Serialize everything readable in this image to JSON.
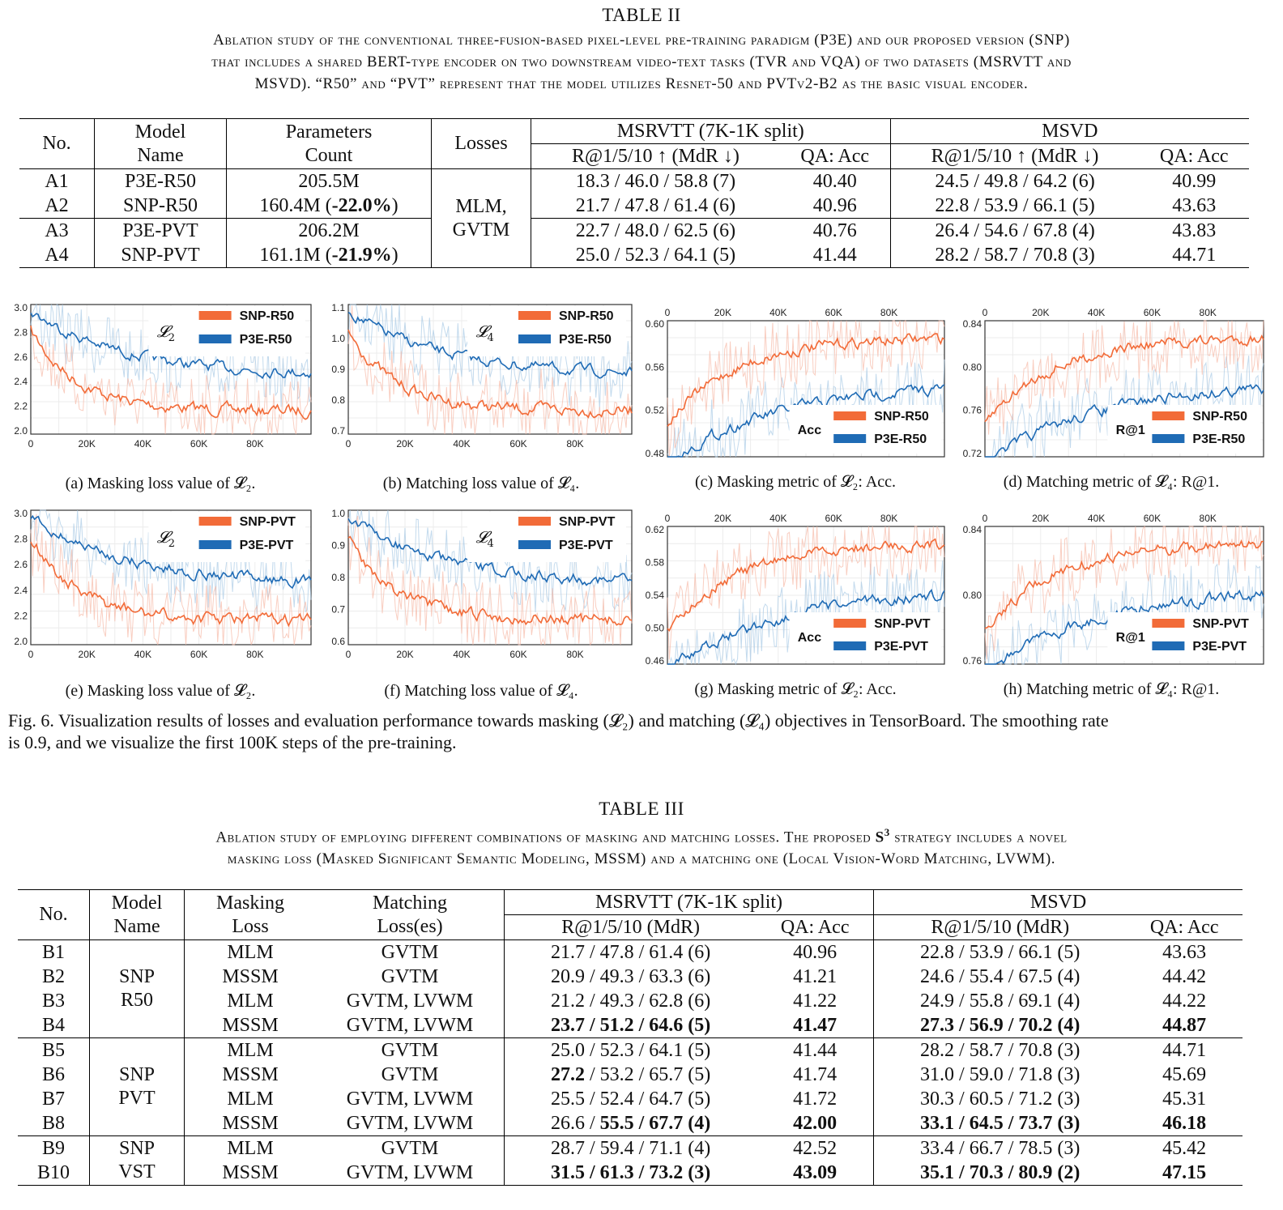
{
  "table2": {
    "title": "TABLE II",
    "desc_lines": [
      "Ablation study of the conventional three-fusion-based pixel-level pre-training paradigm (P3E) and our proposed version (SNP)",
      "that includes a shared BERT-type encoder on two downstream video-text tasks (TVR and VQA) of two datasets (MSRVTT and",
      "MSVD). “R50” and “PVT” represent that the model utilizes Resnet-50 and PVTv2-B2 as the basic visual encoder."
    ],
    "h_no": "No.",
    "h_model1": "Model",
    "h_model2": "Name",
    "h_param1": "Parameters",
    "h_param2": "Count",
    "h_losses": "Losses",
    "h_msrvtt": "MSRVTT (7K-1K split)",
    "h_msvd": "MSVD",
    "h_r": "R@1/5/10 ↑ (MdR ↓)",
    "h_qa": "QA: Acc",
    "losses_1": "MLM,",
    "losses_2": "GVTM",
    "rows": [
      {
        "no": "A1",
        "model": "P3E-R50",
        "param": "205.5M",
        "param_b": "",
        "param_e": "",
        "msr_r": "18.3 / 46.0 / 58.8 (7)",
        "msr_qa": "40.40",
        "msvd_r": "24.5 / 49.8 / 64.2 (6)",
        "msvd_qa": "40.99"
      },
      {
        "no": "A2",
        "model": "SNP-R50",
        "param": "160.4M (",
        "param_b": "-22.0%",
        "param_e": ")",
        "msr_r": "21.7 / 47.8 / 61.4 (6)",
        "msr_qa": "40.96",
        "msvd_r": "22.8 / 53.9 / 66.1 (5)",
        "msvd_qa": "43.63"
      },
      {
        "no": "A3",
        "model": "P3E-PVT",
        "param": "206.2M",
        "param_b": "",
        "param_e": "",
        "msr_r": "22.7 / 48.0 / 62.5 (6)",
        "msr_qa": "40.76",
        "msvd_r": "26.4 / 54.6 / 67.8 (4)",
        "msvd_qa": "43.83"
      },
      {
        "no": "A4",
        "model": "SNP-PVT",
        "param": "161.1M (",
        "param_b": "-21.9%",
        "param_e": ")",
        "msr_r": "25.0 / 52.3 / 64.1 (5)",
        "msr_qa": "41.44",
        "msvd_r": "28.2 / 58.7 / 70.8 (3)",
        "msvd_qa": "44.71"
      }
    ]
  },
  "figure": {
    "panels": [
      {
        "caption": "(a) Masking loss value of 𝓛₂.",
        "legend": [
          "SNP-R50",
          "P3E-R50"
        ],
        "symbol_a": "𝓛",
        "symbol_b": "2",
        "yticks": [
          "3.0",
          "2.8",
          "2.6",
          "2.4",
          "2.2",
          "2.0"
        ],
        "xticks": [
          "0",
          "20K",
          "40K",
          "60K",
          "80K"
        ],
        "xaxis": "bottom"
      },
      {
        "caption": "(b) Matching loss value of 𝓛₄.",
        "legend": [
          "SNP-R50",
          "P3E-R50"
        ],
        "symbol_a": "𝓛",
        "symbol_b": "4",
        "yticks": [
          "1.1",
          "1.0",
          "0.9",
          "0.8",
          "0.7"
        ],
        "xticks": [
          "0",
          "20K",
          "40K",
          "60K",
          "80K"
        ],
        "xaxis": "bottom"
      },
      {
        "caption": "(c) Masking metric of 𝓛₂: Acc.",
        "legend": [
          "SNP-R50",
          "P3E-R50"
        ],
        "metric": "Acc",
        "yticks": [
          "0.60",
          "0.56",
          "0.52",
          "0.48"
        ],
        "xticks": [
          "0",
          "20K",
          "40K",
          "60K",
          "80K"
        ],
        "xaxis": "top"
      },
      {
        "caption": "(d) Matching metric of 𝓛₄: R@1.",
        "legend": [
          "SNP-R50",
          "P3E-R50"
        ],
        "metric": "R@1",
        "yticks": [
          "0.84",
          "0.80",
          "0.76",
          "0.72"
        ],
        "xticks": [
          "0",
          "20K",
          "40K",
          "60K",
          "80K"
        ],
        "xaxis": "top"
      },
      {
        "caption": "(e) Masking loss value of 𝓛₂.",
        "legend": [
          "SNP-PVT",
          "P3E-PVT"
        ],
        "symbol_a": "𝓛",
        "symbol_b": "2",
        "yticks": [
          "3.0",
          "2.8",
          "2.6",
          "2.4",
          "2.2",
          "2.0"
        ],
        "xticks": [
          "0",
          "20K",
          "40K",
          "60K",
          "80K"
        ],
        "xaxis": "bottom"
      },
      {
        "caption": "(f) Matching loss value of 𝓛₄.",
        "legend": [
          "SNP-PVT",
          "P3E-PVT"
        ],
        "symbol_a": "𝓛",
        "symbol_b": "4",
        "yticks": [
          "1.0",
          "0.9",
          "0.8",
          "0.7",
          "0.6"
        ],
        "xticks": [
          "0",
          "20K",
          "40K",
          "60K",
          "80K"
        ],
        "xaxis": "bottom"
      },
      {
        "caption": "(g) Masking metric of 𝓛₂: Acc.",
        "legend": [
          "SNP-PVT",
          "P3E-PVT"
        ],
        "metric": "Acc",
        "yticks": [
          "0.62",
          "0.58",
          "0.54",
          "0.50",
          "0.46"
        ],
        "xticks": [
          "0",
          "20K",
          "40K",
          "60K",
          "80K"
        ],
        "xaxis": "top"
      },
      {
        "caption": "(h) Matching metric of 𝓛₄: R@1.",
        "legend": [
          "SNP-PVT",
          "P3E-PVT"
        ],
        "metric": "R@1",
        "yticks": [
          "0.84",
          "0.80",
          "0.76"
        ],
        "xticks": [
          "0",
          "20K",
          "40K",
          "60K",
          "80K"
        ],
        "xaxis": "top"
      }
    ],
    "caption_lines": [
      "Fig. 6.  Visualization results of losses and evaluation performance towards masking (𝓛₂) and matching (𝓛₄) objectives in TensorBoard. The smoothing rate",
      "is 0.9, and we visualize the first 100K steps of the pre-training."
    ],
    "colors": {
      "snp": "#f26b38",
      "p3e": "#1f6bb5",
      "snp_light": "#f7b9a6",
      "p3e_light": "#a9cbe6"
    }
  },
  "table3": {
    "title": "TABLE III",
    "desc_line1_a": "Ablation study of employing different combinations of masking and matching losses. The proposed ",
    "desc_line1_b": "S",
    "desc_line1_c": "3",
    "desc_line1_d": " strategy includes a novel",
    "desc_line2": "masking loss (Masked Significant Semantic Modeling, MSSM) and a matching one (Local Vision-Word Matching, LVWM).",
    "h_no": "No.",
    "h_model1": "Model",
    "h_model2": "Name",
    "h_mask1": "Masking",
    "h_mask2": "Loss",
    "h_match1": "Matching",
    "h_match2": "Loss(es)",
    "h_msrvtt": "MSRVTT (7K-1K split)",
    "h_msvd": "MSVD",
    "h_r": "R@1/5/10 (MdR)",
    "h_qa": "QA: Acc",
    "group1": [
      "SNP",
      "R50"
    ],
    "group2": [
      "SNP",
      "PVT"
    ],
    "group3": [
      "SNP",
      "VST"
    ],
    "rows": [
      {
        "no": "B1",
        "mask": "MLM",
        "match": "GVTM",
        "msr_r": "21.7 / 47.8 / 61.4 (6)",
        "msr_qa": "40.96",
        "msvd_r": "22.8 / 53.9 / 66.1 (5)",
        "msvd_qa": "43.63"
      },
      {
        "no": "B2",
        "mask": "MSSM",
        "match": "GVTM",
        "msr_r": "20.9 / 49.3 / 63.3 (6)",
        "msr_qa": "41.21",
        "msvd_r": "24.6 / 55.4 / 67.5 (4)",
        "msvd_qa": "44.42"
      },
      {
        "no": "B3",
        "mask": "MLM",
        "match": "GVTM, LVWM",
        "msr_r": "21.2 / 49.3 / 62.8 (6)",
        "msr_qa": "41.22",
        "msvd_r": "24.9 / 55.8 / 69.1 (4)",
        "msvd_qa": "44.22"
      },
      {
        "no": "B4",
        "mask": "MSSM",
        "match": "GVTM, LVWM",
        "msr_r": "23.7 / 51.2 / 64.6 (5)",
        "msr_qa": "41.47",
        "msvd_r": "27.3 / 56.9 / 70.2 (4)",
        "msvd_qa": "44.87"
      },
      {
        "no": "B5",
        "mask": "MLM",
        "match": "GVTM",
        "msr_r": "25.0 / 52.3 / 64.1 (5)",
        "msr_qa": "41.44",
        "msvd_r": "28.2 / 58.7 / 70.8 (3)",
        "msvd_qa": "44.71"
      },
      {
        "no": "B6",
        "mask": "MSSM",
        "match": "GVTM",
        "msr_r_b": "27.2",
        "msr_r_rest": " / 53.2 / 65.7 (5)",
        "msr_qa": "41.74",
        "msvd_r": "31.0 / 59.0 / 71.8 (3)",
        "msvd_qa": "45.69"
      },
      {
        "no": "B7",
        "mask": "MLM",
        "match": "GVTM, LVWM",
        "msr_r": "25.5 / 52.4 / 64.7 (5)",
        "msr_qa": "41.72",
        "msvd_r": "30.3 / 60.5 / 71.2 (3)",
        "msvd_qa": "45.31"
      },
      {
        "no": "B8",
        "mask": "MSSM",
        "match": "GVTM, LVWM",
        "msr_r_pre": "26.6 / ",
        "msr_r_b": "55.5 / 67.7 (4)",
        "msr_qa": "42.00",
        "msvd_r": "33.1 / 64.5 / 73.7 (3)",
        "msvd_qa": "46.18"
      },
      {
        "no": "B9",
        "mask": "MLM",
        "match": "GVTM",
        "msr_r": "28.7 / 59.4 / 71.1 (4)",
        "msr_qa": "42.52",
        "msvd_r": "33.4 / 66.7 / 78.5 (3)",
        "msvd_qa": "45.42"
      },
      {
        "no": "B10",
        "mask": "MSSM",
        "match": "GVTM, LVWM",
        "msr_r": "31.5 / 61.3 / 73.2 (3)",
        "msr_qa": "43.09",
        "msvd_r": "35.1 / 70.3 / 80.9 (2)",
        "msvd_qa": "47.15"
      }
    ]
  }
}
